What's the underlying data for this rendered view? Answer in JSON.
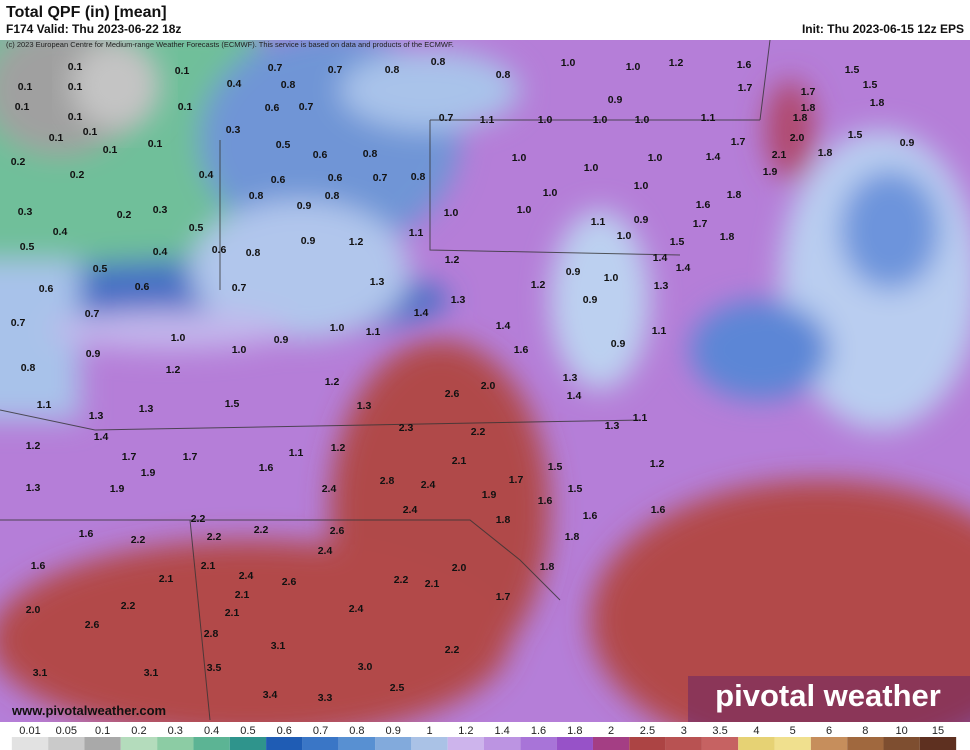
{
  "header": {
    "title": "Total QPF (in) [mean]",
    "valid": "F174 Valid: Thu 2023-06-22 18z",
    "init": "Init: Thu 2023-06-15 12z EPS",
    "credit": "(c) 2023 European Centre for Medium-range Weather Forecasts (ECMWF). This service is based on data and products of the ECMWF."
  },
  "map": {
    "labels": [
      "0.1",
      "0.1",
      "0.7",
      "0.7",
      "0.8",
      "0.8",
      "0.8",
      "1.0",
      "1.0",
      "1.2",
      "1.6",
      "1.5",
      "0.1",
      "0.1",
      "0.4",
      "0.8",
      "1.7",
      "1.7",
      "1.5",
      "0.1",
      "0.1",
      "0.1",
      "0.6",
      "0.7",
      "0.9",
      "1.8",
      "1.8",
      "0.1",
      "0.1",
      "0.1",
      "0.3",
      "0.5",
      "0.6",
      "0.8",
      "0.7",
      "1.1",
      "1.0",
      "1.0",
      "1.0",
      "1.1",
      "1.8",
      "1.7",
      "2.0",
      "1.5",
      "0.9",
      "0.1",
      "0.2",
      "0.2",
      "0.4",
      "0.6",
      "0.6",
      "0.7",
      "0.8",
      "1.0",
      "1.0",
      "1.0",
      "1.4",
      "2.1",
      "1.8",
      "1.9",
      "0.3",
      "0.2",
      "0.3",
      "0.8",
      "0.9",
      "0.8",
      "1.0",
      "1.0",
      "1.0",
      "1.0",
      "1.6",
      "1.8",
      "0.4",
      "0.5",
      "1.1",
      "0.9",
      "1.0",
      "1.5",
      "1.7",
      "1.8",
      "1.1",
      "0.5",
      "0.4",
      "0.6",
      "0.8",
      "0.9",
      "1.2",
      "1.2",
      "0.9",
      "1.0",
      "1.4",
      "1.4",
      "1.3",
      "0.5",
      "0.6",
      "0.6",
      "0.7",
      "1.3",
      "1.2",
      "0.9",
      "0.7",
      "0.7",
      "1.3",
      "1.4",
      "1.4",
      "1.0",
      "1.1",
      "0.9",
      "1.0",
      "1.0",
      "1.6",
      "1.1",
      "0.9",
      "0.9",
      "0.8",
      "1.2",
      "1.2",
      "2.0",
      "1.3",
      "1.4",
      "1.1",
      "1.3",
      "1.3",
      "1.5",
      "1.3",
      "2.6",
      "1.1",
      "1.3",
      "1.4",
      "2.3",
      "2.2",
      "1.2",
      "1.7",
      "1.7",
      "1.1",
      "1.2",
      "2.1",
      "1.5",
      "1.2",
      "1.9",
      "1.6",
      "2.8",
      "2.4",
      "1.7",
      "1.5",
      "1.3",
      "1.9",
      "2.4",
      "1.9",
      "1.6",
      "1.6",
      "1.6",
      "2.2",
      "2.2",
      "2.4",
      "1.8",
      "2.6",
      "1.6",
      "2.2",
      "2.2",
      "1.8",
      "2.4",
      "1.6",
      "2.1",
      "2.4",
      "2.1",
      "2.6",
      "2.0",
      "1.8",
      "2.2",
      "2.1",
      "2.1",
      "2.0",
      "2.2",
      "2.1",
      "2.4",
      "1.7",
      "2.6",
      "2.8",
      "3.1",
      "2.2",
      "3.1",
      "3.1",
      "3.5",
      "3.0",
      "3.4",
      "3.3",
      "2.5"
    ]
  },
  "watermark": {
    "url": "www.pivotalweather.com",
    "logo": "pivotal weather"
  },
  "colorbar": {
    "values": [
      0.01,
      0.05,
      0.1,
      0.2,
      0.3,
      0.4,
      0.5,
      0.6,
      0.7,
      0.8,
      0.9,
      1,
      1.2,
      1.4,
      1.6,
      1.8,
      2,
      2.5,
      3,
      3.5,
      4,
      5,
      6,
      8,
      10,
      15
    ],
    "colors": [
      "#e2e2e2",
      "#cacaca",
      "#a9a9a9",
      "#b4dcbc",
      "#8ccca4",
      "#5cb494",
      "#2f948c",
      "#1f5cb4",
      "#3a76c6",
      "#5890d2",
      "#82aadc",
      "#aac2e6",
      "#cdb4ec",
      "#bc94e2",
      "#a874d8",
      "#9752c8",
      "#a43e84",
      "#ac4444",
      "#b85252",
      "#c66262",
      "#e6d274",
      "#f0e08e",
      "#c68e5c",
      "#a0683e",
      "#7e4e30",
      "#5e3020"
    ]
  }
}
